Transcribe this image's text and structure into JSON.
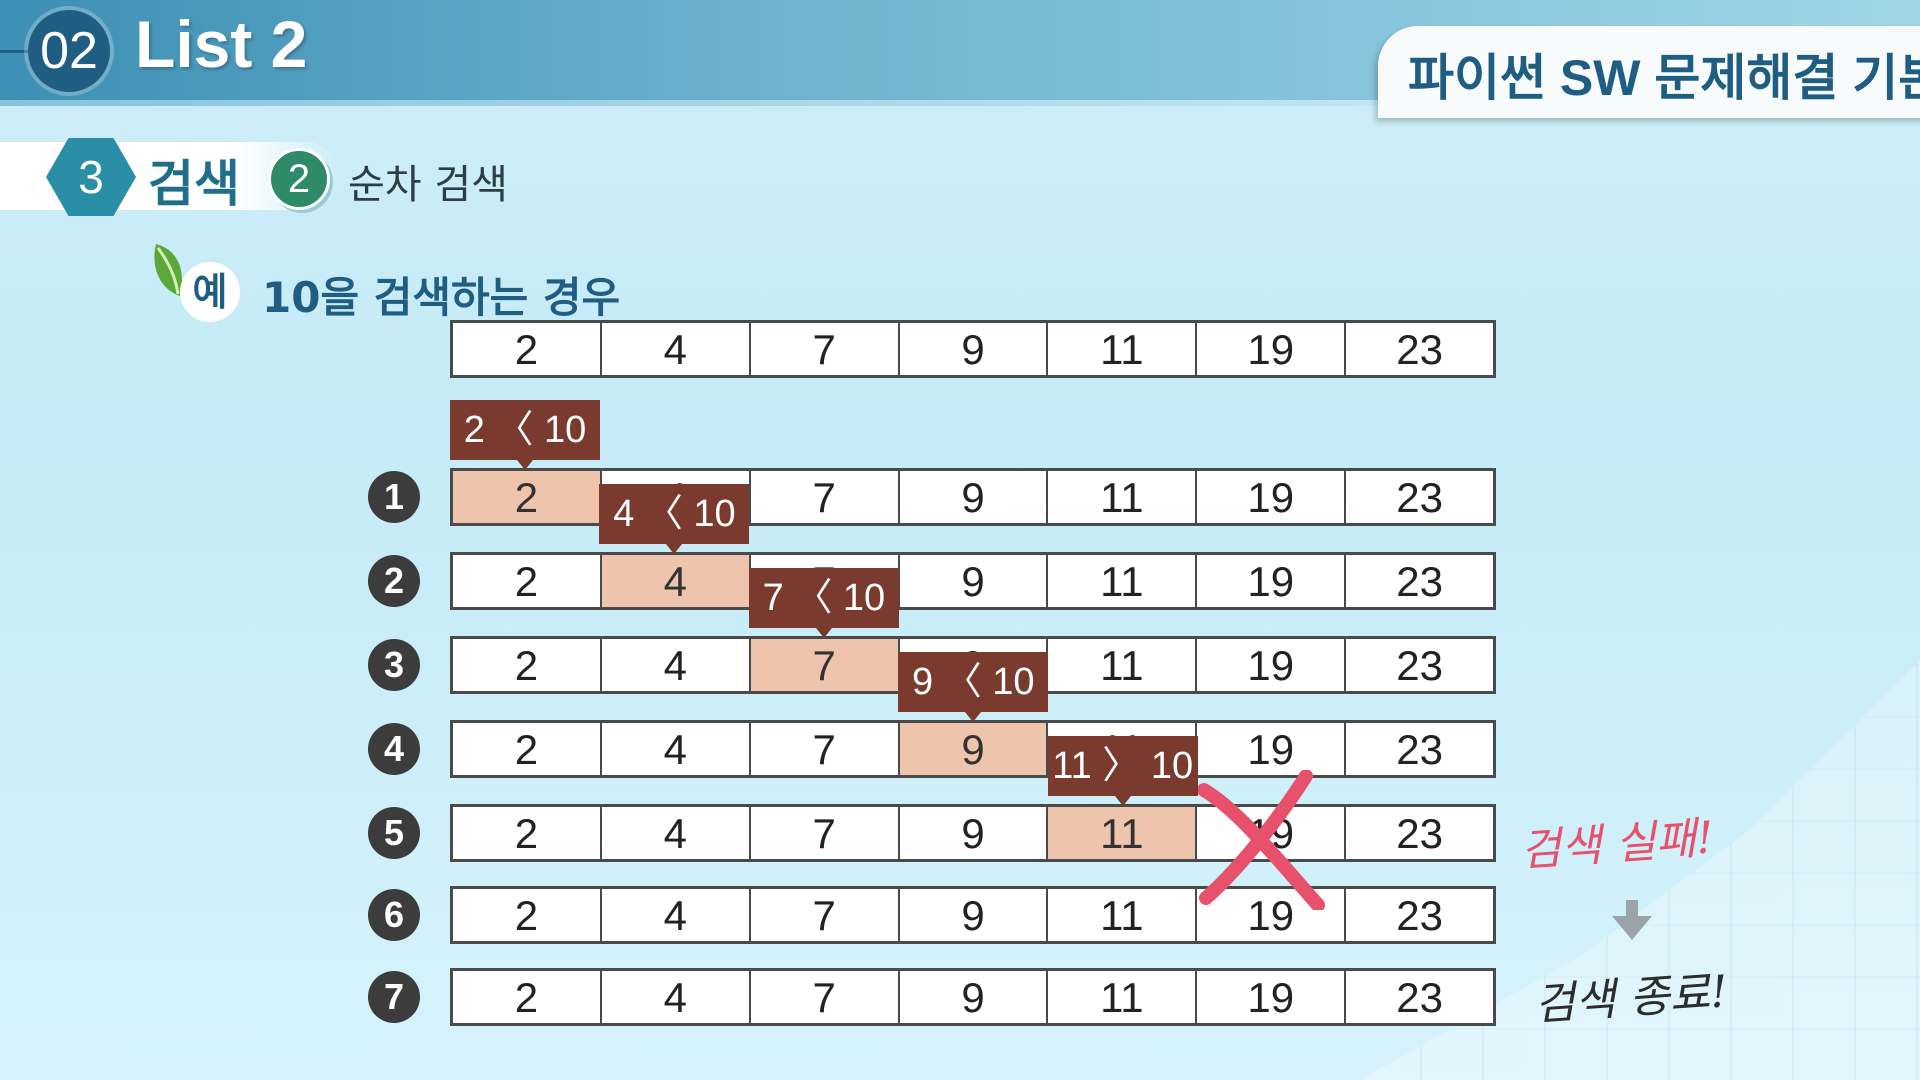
{
  "header": {
    "number": "02",
    "title": "List 2",
    "course": "파이썬 SW 문제해결 기본"
  },
  "section": {
    "number": "3",
    "label": "검색",
    "sub_number": "2",
    "sub_label": "순차 검색"
  },
  "example": {
    "badge": "예",
    "text": "10을 검색하는 경우"
  },
  "array": [
    "2",
    "4",
    "7",
    "9",
    "11",
    "19",
    "23"
  ],
  "steps": [
    {
      "num": "1",
      "highlight": 0,
      "callout": "2 〈 10"
    },
    {
      "num": "2",
      "highlight": 1,
      "callout": "4 〈 10"
    },
    {
      "num": "3",
      "highlight": 2,
      "callout": "7 〈 10"
    },
    {
      "num": "4",
      "highlight": 3,
      "callout": "9 〈 10"
    },
    {
      "num": "5",
      "highlight": 4,
      "callout": "11 〉 10"
    },
    {
      "num": "6",
      "highlight": -1,
      "callout": ""
    },
    {
      "num": "7",
      "highlight": -1,
      "callout": ""
    }
  ],
  "result": {
    "fail": "검색 실패!",
    "end": "검색 종료!"
  },
  "colors": {
    "header": "#3d8fb3",
    "highlight": "#efc4ad",
    "callout": "#7a3b2e",
    "cross": "#e8516b"
  }
}
